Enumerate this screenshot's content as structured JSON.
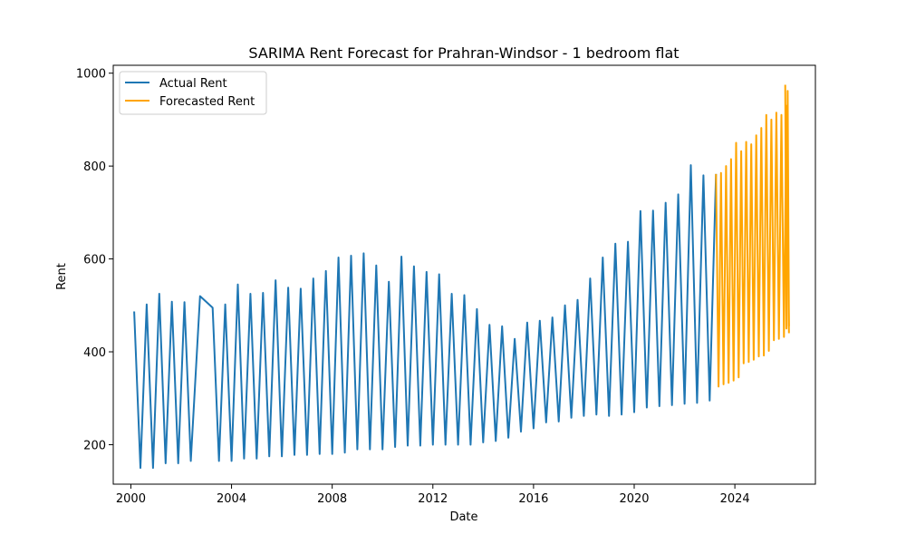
{
  "chart_data": {
    "type": "line",
    "title": "SARIMA Rent Forecast for Prahran-Windsor - 1 bedroom flat",
    "xlabel": "Date",
    "ylabel": "Rent",
    "xlim": [
      1999.3,
      2027.2
    ],
    "ylim": [
      115,
      1017
    ],
    "x_ticks": [
      2000,
      2004,
      2008,
      2012,
      2016,
      2020,
      2024
    ],
    "x_tick_labels": [
      "2000",
      "2004",
      "2008",
      "2012",
      "2016",
      "2020",
      "2024"
    ],
    "y_ticks": [
      200,
      400,
      600,
      800,
      1000
    ],
    "y_tick_labels": [
      "200",
      "400",
      "600",
      "800",
      "1000"
    ],
    "grid": false,
    "legend_position": "top-left",
    "series": [
      {
        "name": "Actual Rent",
        "color": "#1f77b4",
        "x": [
          2000.13,
          2000.38,
          2000.63,
          2000.88,
          2001.13,
          2001.38,
          2001.63,
          2001.88,
          2002.13,
          2002.38,
          2002.75,
          2003.25,
          2003.5,
          2003.75,
          2004.0,
          2004.25,
          2004.5,
          2004.75,
          2005.0,
          2005.25,
          2005.5,
          2005.75,
          2006.0,
          2006.25,
          2006.5,
          2006.75,
          2007.0,
          2007.25,
          2007.5,
          2007.75,
          2008.0,
          2008.25,
          2008.5,
          2008.75,
          2009.0,
          2009.25,
          2009.5,
          2009.75,
          2010.0,
          2010.25,
          2010.5,
          2010.75,
          2011.0,
          2011.25,
          2011.5,
          2011.75,
          2012.0,
          2012.25,
          2012.5,
          2012.75,
          2013.0,
          2013.25,
          2013.5,
          2013.75,
          2014.0,
          2014.25,
          2014.5,
          2014.75,
          2015.0,
          2015.25,
          2015.5,
          2015.75,
          2016.0,
          2016.25,
          2016.5,
          2016.75,
          2017.0,
          2017.25,
          2017.5,
          2017.75,
          2018.0,
          2018.25,
          2018.5,
          2018.75,
          2019.0,
          2019.25,
          2019.5,
          2019.75,
          2020.0,
          2020.25,
          2020.5,
          2020.75,
          2021.0,
          2021.25,
          2021.5,
          2021.75,
          2022.0,
          2022.25,
          2022.5,
          2022.75,
          2023.0,
          2023.25
        ],
        "values": [
          487,
          150,
          502,
          150,
          525,
          160,
          508,
          160,
          507,
          165,
          520,
          495,
          165,
          502,
          165,
          545,
          170,
          525,
          170,
          527,
          175,
          554,
          175,
          538,
          178,
          536,
          178,
          558,
          180,
          574,
          180,
          603,
          183,
          607,
          190,
          612,
          190,
          586,
          190,
          551,
          195,
          605,
          198,
          584,
          198,
          572,
          200,
          567,
          200,
          525,
          200,
          522,
          200,
          492,
          205,
          458,
          208,
          455,
          215,
          428,
          228,
          463,
          235,
          467,
          248,
          474,
          250,
          500,
          258,
          512,
          262,
          558,
          265,
          603,
          262,
          633,
          265,
          637,
          270,
          703,
          280,
          704,
          283,
          721,
          285,
          739,
          288,
          802,
          290,
          780,
          295,
          783
        ]
      },
      {
        "name": "Forecasted Rent",
        "color": "#ffa500",
        "x": [
          2023.25,
          2023.35,
          2023.45,
          2023.55,
          2023.65,
          2023.75,
          2023.85,
          2023.95,
          2024.05,
          2024.15,
          2024.25,
          2024.35,
          2024.45,
          2024.55,
          2024.65,
          2024.75,
          2024.85,
          2024.95,
          2025.05,
          2025.15,
          2025.25,
          2025.35,
          2025.45,
          2025.55,
          2025.65,
          2025.75,
          2025.85,
          2025.95,
          2026.05,
          2026.15
        ],
        "values": [
          783,
          325,
          785,
          330,
          800,
          333,
          815,
          338,
          850,
          345,
          832,
          375,
          852,
          378,
          847,
          383,
          866,
          390,
          882,
          392,
          910,
          402,
          900,
          425,
          915,
          428,
          910,
          432,
          930,
          440
        ]
      },
      {
        "name": "",
        "color": "#ffa500",
        "x": [
          2026.0,
          2026.05,
          2026.1,
          2026.15
        ],
        "values": [
          975,
          450,
          962,
          455
        ]
      }
    ]
  }
}
